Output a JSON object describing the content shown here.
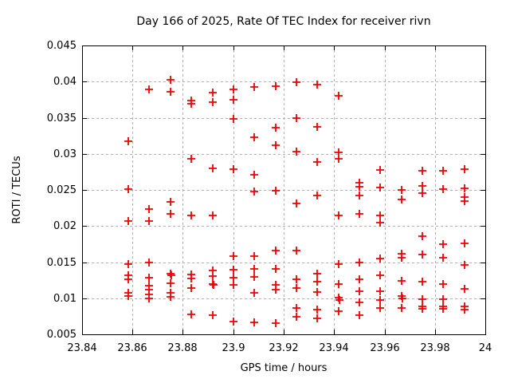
{
  "chart_data": {
    "type": "scatter",
    "title": "Day 166 of 2025, Rate Of TEC Index for receiver rivn",
    "xlabel": "GPS time / hours",
    "ylabel": "ROTI / TECUs",
    "xlim": [
      23.84,
      24
    ],
    "ylim": [
      0.005,
      0.045
    ],
    "x_ticks": [
      "23.84",
      "23.86",
      "23.88",
      "23.9",
      "23.92",
      "23.94",
      "23.96",
      "23.98",
      "24"
    ],
    "y_ticks": [
      "0.005",
      "0.01",
      "0.015",
      "0.02",
      "0.025",
      "0.03",
      "0.035",
      "0.04",
      "0.045"
    ],
    "grid": "dashed-gray",
    "legend": "none",
    "marker": {
      "shape": "plus",
      "color": "#ee0000",
      "size": 5,
      "stroke_width": 1.8
    },
    "series": [
      {
        "name": "ROTI",
        "points": [
          [
            23.8583,
            0.0317
          ],
          [
            23.8583,
            0.0251
          ],
          [
            23.8583,
            0.0207
          ],
          [
            23.8583,
            0.0147
          ],
          [
            23.8583,
            0.0132
          ],
          [
            23.8583,
            0.0126
          ],
          [
            23.8583,
            0.0107
          ],
          [
            23.8583,
            0.0103
          ],
          [
            23.8667,
            0.0389
          ],
          [
            23.8667,
            0.0224
          ],
          [
            23.8667,
            0.0207
          ],
          [
            23.8667,
            0.0149
          ],
          [
            23.8667,
            0.0128
          ],
          [
            23.8667,
            0.0117
          ],
          [
            23.8667,
            0.0112
          ],
          [
            23.8667,
            0.0105
          ],
          [
            23.8667,
            0.01
          ],
          [
            23.875,
            0.0403
          ],
          [
            23.875,
            0.0386
          ],
          [
            23.875,
            0.0233
          ],
          [
            23.875,
            0.0217
          ],
          [
            23.875,
            0.0134
          ],
          [
            23.8755,
            0.0132
          ],
          [
            23.875,
            0.0121
          ],
          [
            23.875,
            0.0108
          ],
          [
            23.875,
            0.0102
          ],
          [
            23.8833,
            0.0374
          ],
          [
            23.8833,
            0.0369
          ],
          [
            23.8833,
            0.0293
          ],
          [
            23.8833,
            0.0215
          ],
          [
            23.8833,
            0.0133
          ],
          [
            23.8833,
            0.0127
          ],
          [
            23.8833,
            0.0114
          ],
          [
            23.8833,
            0.0078
          ],
          [
            23.8917,
            0.0385
          ],
          [
            23.8917,
            0.0372
          ],
          [
            23.8917,
            0.028
          ],
          [
            23.8917,
            0.0215
          ],
          [
            23.8917,
            0.0138
          ],
          [
            23.8917,
            0.0131
          ],
          [
            23.8917,
            0.012
          ],
          [
            23.8922,
            0.0118
          ],
          [
            23.8917,
            0.0077
          ],
          [
            23.9,
            0.0389
          ],
          [
            23.9,
            0.0375
          ],
          [
            23.9,
            0.0348
          ],
          [
            23.9,
            0.0279
          ],
          [
            23.9,
            0.0158
          ],
          [
            23.9,
            0.0139
          ],
          [
            23.9,
            0.0129
          ],
          [
            23.9,
            0.0118
          ],
          [
            23.9,
            0.0068
          ],
          [
            23.9083,
            0.0392
          ],
          [
            23.9083,
            0.0323
          ],
          [
            23.9083,
            0.0271
          ],
          [
            23.9083,
            0.0248
          ],
          [
            23.9083,
            0.0158
          ],
          [
            23.9083,
            0.0141
          ],
          [
            23.9083,
            0.013
          ],
          [
            23.9083,
            0.0108
          ],
          [
            23.9083,
            0.0067
          ],
          [
            23.9167,
            0.0394
          ],
          [
            23.9167,
            0.0336
          ],
          [
            23.9167,
            0.0312
          ],
          [
            23.9167,
            0.0249
          ],
          [
            23.9167,
            0.0166
          ],
          [
            23.9167,
            0.0141
          ],
          [
            23.9167,
            0.0119
          ],
          [
            23.9167,
            0.0112
          ],
          [
            23.9167,
            0.0066
          ],
          [
            23.925,
            0.0399
          ],
          [
            23.925,
            0.035
          ],
          [
            23.925,
            0.0303
          ],
          [
            23.925,
            0.0231
          ],
          [
            23.925,
            0.0166
          ],
          [
            23.925,
            0.0126
          ],
          [
            23.925,
            0.0114
          ],
          [
            23.925,
            0.0086
          ],
          [
            23.925,
            0.0074
          ],
          [
            23.9333,
            0.0396
          ],
          [
            23.9333,
            0.0337
          ],
          [
            23.9333,
            0.0289
          ],
          [
            23.9333,
            0.0242
          ],
          [
            23.9333,
            0.0134
          ],
          [
            23.9333,
            0.0123
          ],
          [
            23.9333,
            0.0109
          ],
          [
            23.9333,
            0.0084
          ],
          [
            23.9333,
            0.0072
          ],
          [
            23.9417,
            0.038
          ],
          [
            23.9417,
            0.0302
          ],
          [
            23.9417,
            0.0293
          ],
          [
            23.9417,
            0.0215
          ],
          [
            23.9417,
            0.0147
          ],
          [
            23.9417,
            0.012
          ],
          [
            23.9417,
            0.0101
          ],
          [
            23.9422,
            0.0098
          ],
          [
            23.9417,
            0.0082
          ],
          [
            23.95,
            0.026
          ],
          [
            23.95,
            0.0254
          ],
          [
            23.95,
            0.0242
          ],
          [
            23.95,
            0.0217
          ],
          [
            23.95,
            0.015
          ],
          [
            23.95,
            0.0126
          ],
          [
            23.95,
            0.011
          ],
          [
            23.95,
            0.0094
          ],
          [
            23.95,
            0.0077
          ],
          [
            23.9583,
            0.0278
          ],
          [
            23.9583,
            0.0253
          ],
          [
            23.9583,
            0.0215
          ],
          [
            23.9583,
            0.0205
          ],
          [
            23.9583,
            0.0155
          ],
          [
            23.9583,
            0.0132
          ],
          [
            23.9583,
            0.011
          ],
          [
            23.9583,
            0.0098
          ],
          [
            23.9583,
            0.0086
          ],
          [
            23.9667,
            0.025
          ],
          [
            23.9667,
            0.0237
          ],
          [
            23.9667,
            0.0162
          ],
          [
            23.9667,
            0.0156
          ],
          [
            23.9667,
            0.0124
          ],
          [
            23.9667,
            0.0103
          ],
          [
            23.9672,
            0.01
          ],
          [
            23.9667,
            0.0087
          ],
          [
            23.975,
            0.0277
          ],
          [
            23.975,
            0.0256
          ],
          [
            23.975,
            0.0246
          ],
          [
            23.975,
            0.0186
          ],
          [
            23.975,
            0.016
          ],
          [
            23.975,
            0.0123
          ],
          [
            23.975,
            0.0099
          ],
          [
            23.975,
            0.0089
          ],
          [
            23.975,
            0.0085
          ],
          [
            23.9833,
            0.0276
          ],
          [
            23.9833,
            0.0251
          ],
          [
            23.9833,
            0.0175
          ],
          [
            23.9833,
            0.0156
          ],
          [
            23.9833,
            0.012
          ],
          [
            23.9833,
            0.0099
          ],
          [
            23.9833,
            0.0089
          ],
          [
            23.9833,
            0.0085
          ],
          [
            23.9917,
            0.0279
          ],
          [
            23.9917,
            0.0252
          ],
          [
            23.9917,
            0.024
          ],
          [
            23.9917,
            0.0235
          ],
          [
            23.9917,
            0.0176
          ],
          [
            23.9917,
            0.0146
          ],
          [
            23.9917,
            0.0113
          ],
          [
            23.9917,
            0.0089
          ],
          [
            23.9917,
            0.0084
          ]
        ]
      }
    ]
  },
  "colors": {
    "background": "#ffffff",
    "axis": "#000000",
    "grid": "#b0b0b0",
    "marker": "#ee0000",
    "text": "#000000"
  }
}
